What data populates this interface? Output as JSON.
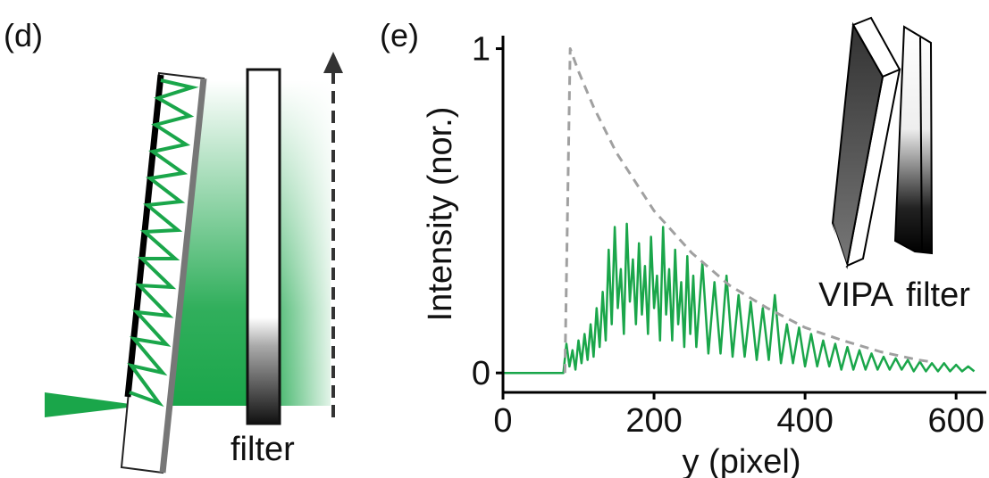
{
  "panel_d": {
    "label": "(d)",
    "filter_label": "filter"
  },
  "chart_data": {
    "type": "line",
    "panel_label": "(e)",
    "xlabel": "y (pixel)",
    "ylabel": "Intensity (nor.)",
    "xlim": [
      0,
      640
    ],
    "ylim": [
      -0.06,
      1.04
    ],
    "xticks": [
      0,
      200,
      400,
      600
    ],
    "yticks": [
      0,
      1
    ],
    "inset_labels": [
      "VIPA",
      "filter"
    ],
    "series": [
      {
        "color": "#1aa64a",
        "linestyle": "solid",
        "x": [
          0,
          80,
          84,
          88,
          92,
          96,
          100,
          104,
          108,
          112,
          116,
          120,
          124,
          128,
          132,
          136,
          140,
          144,
          148,
          152,
          156,
          160,
          164,
          168,
          172,
          176,
          180,
          184,
          188,
          192,
          196,
          200,
          204,
          208,
          212,
          216,
          220,
          224,
          228,
          232,
          236,
          240,
          244,
          248,
          252,
          256,
          264,
          272,
          280,
          288,
          296,
          304,
          312,
          320,
          328,
          336,
          344,
          352,
          360,
          368,
          376,
          384,
          392,
          400,
          408,
          416,
          424,
          432,
          440,
          448,
          456,
          464,
          472,
          480,
          488,
          496,
          504,
          512,
          520,
          528,
          536,
          544,
          552,
          560,
          568,
          576,
          584,
          592,
          600,
          608,
          616,
          624
        ],
        "values": [
          0,
          0,
          0.09,
          0.02,
          0.07,
          0.01,
          0.1,
          0.03,
          0.12,
          0.04,
          0.15,
          0.05,
          0.2,
          0.08,
          0.25,
          0.1,
          0.38,
          0.15,
          0.45,
          0.2,
          0.32,
          0.12,
          0.46,
          0.22,
          0.35,
          0.15,
          0.4,
          0.18,
          0.33,
          0.12,
          0.42,
          0.2,
          0.3,
          0.1,
          0.45,
          0.18,
          0.32,
          0.1,
          0.38,
          0.15,
          0.28,
          0.08,
          0.36,
          0.12,
          0.3,
          0.08,
          0.34,
          0.06,
          0.28,
          0.06,
          0.3,
          0.05,
          0.24,
          0.05,
          0.22,
          0.04,
          0.2,
          0.04,
          0.24,
          0.03,
          0.15,
          0.03,
          0.14,
          0.02,
          0.12,
          0.02,
          0.1,
          0.02,
          0.09,
          0.01,
          0.08,
          0.01,
          0.07,
          0.01,
          0.06,
          0.01,
          0.05,
          0.01,
          0.045,
          0.01,
          0.04,
          0.005,
          0.035,
          0.005,
          0.03,
          0.005,
          0.03,
          0.005,
          0.025,
          0.005,
          0.02,
          0.005
        ]
      },
      {
        "color": "#a0a0a0",
        "linestyle": "dashed",
        "x": [
          82,
          89,
          100,
          120,
          150,
          200,
          250,
          300,
          350,
          400,
          450,
          500,
          550,
          565
        ],
        "values": [
          0,
          1,
          0.93,
          0.82,
          0.68,
          0.5,
          0.37,
          0.27,
          0.2,
          0.14,
          0.1,
          0.065,
          0.04,
          0.035
        ]
      }
    ]
  }
}
